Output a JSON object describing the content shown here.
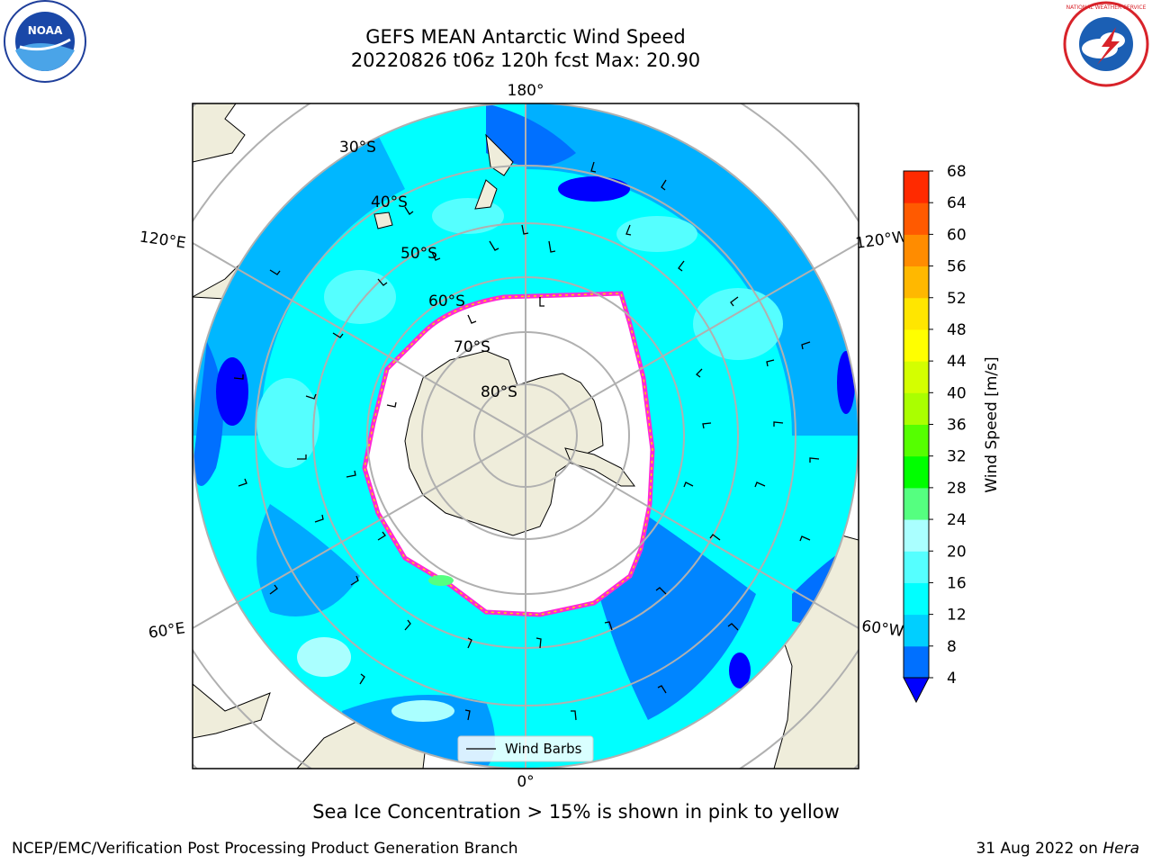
{
  "title_line1": "GEFS MEAN Antarctic Wind Speed",
  "title_line2": "20220826 t06z 120h fcst   Max: 20.90",
  "logos": {
    "left": "NOAA",
    "right": "NATIONAL WEATHER SERVICE"
  },
  "map": {
    "projection": "south-polar-stereographic",
    "longitude_labels": {
      "top": "180°",
      "bottom": "0°",
      "upper_left": "120°E",
      "upper_right": "120°W",
      "lower_left": "60°E",
      "lower_right": "60°W"
    },
    "latitude_labels": [
      "30°S",
      "40°S",
      "50°S",
      "60°S",
      "70°S",
      "80°S"
    ],
    "legend_label": "Wind Barbs"
  },
  "colorbar": {
    "label": "Wind Speed [m/s]",
    "ticks": [
      "4",
      "8",
      "12",
      "16",
      "20",
      "24",
      "28",
      "32",
      "36",
      "40",
      "44",
      "48",
      "52",
      "56",
      "60",
      "64",
      "68"
    ],
    "colors": [
      "#0070ff",
      "#00cfff",
      "#00ffff",
      "#55ffff",
      "#aaffff",
      "#55ff80",
      "#00ff00",
      "#55ff00",
      "#aaff00",
      "#d4ff00",
      "#ffff00",
      "#ffe600",
      "#ffb800",
      "#ff8c00",
      "#ff5a00",
      "#ff2a00",
      "#ff0000"
    ],
    "under_color": "#0000ff"
  },
  "note": "Sea Ice Concentration > 15% is shown in pink to yellow",
  "footer_left": "NCEP/EMC/Verification Post Processing Product Generation Branch",
  "footer_right_date": "31 Aug 2022 on ",
  "footer_right_machine": "Hera"
}
